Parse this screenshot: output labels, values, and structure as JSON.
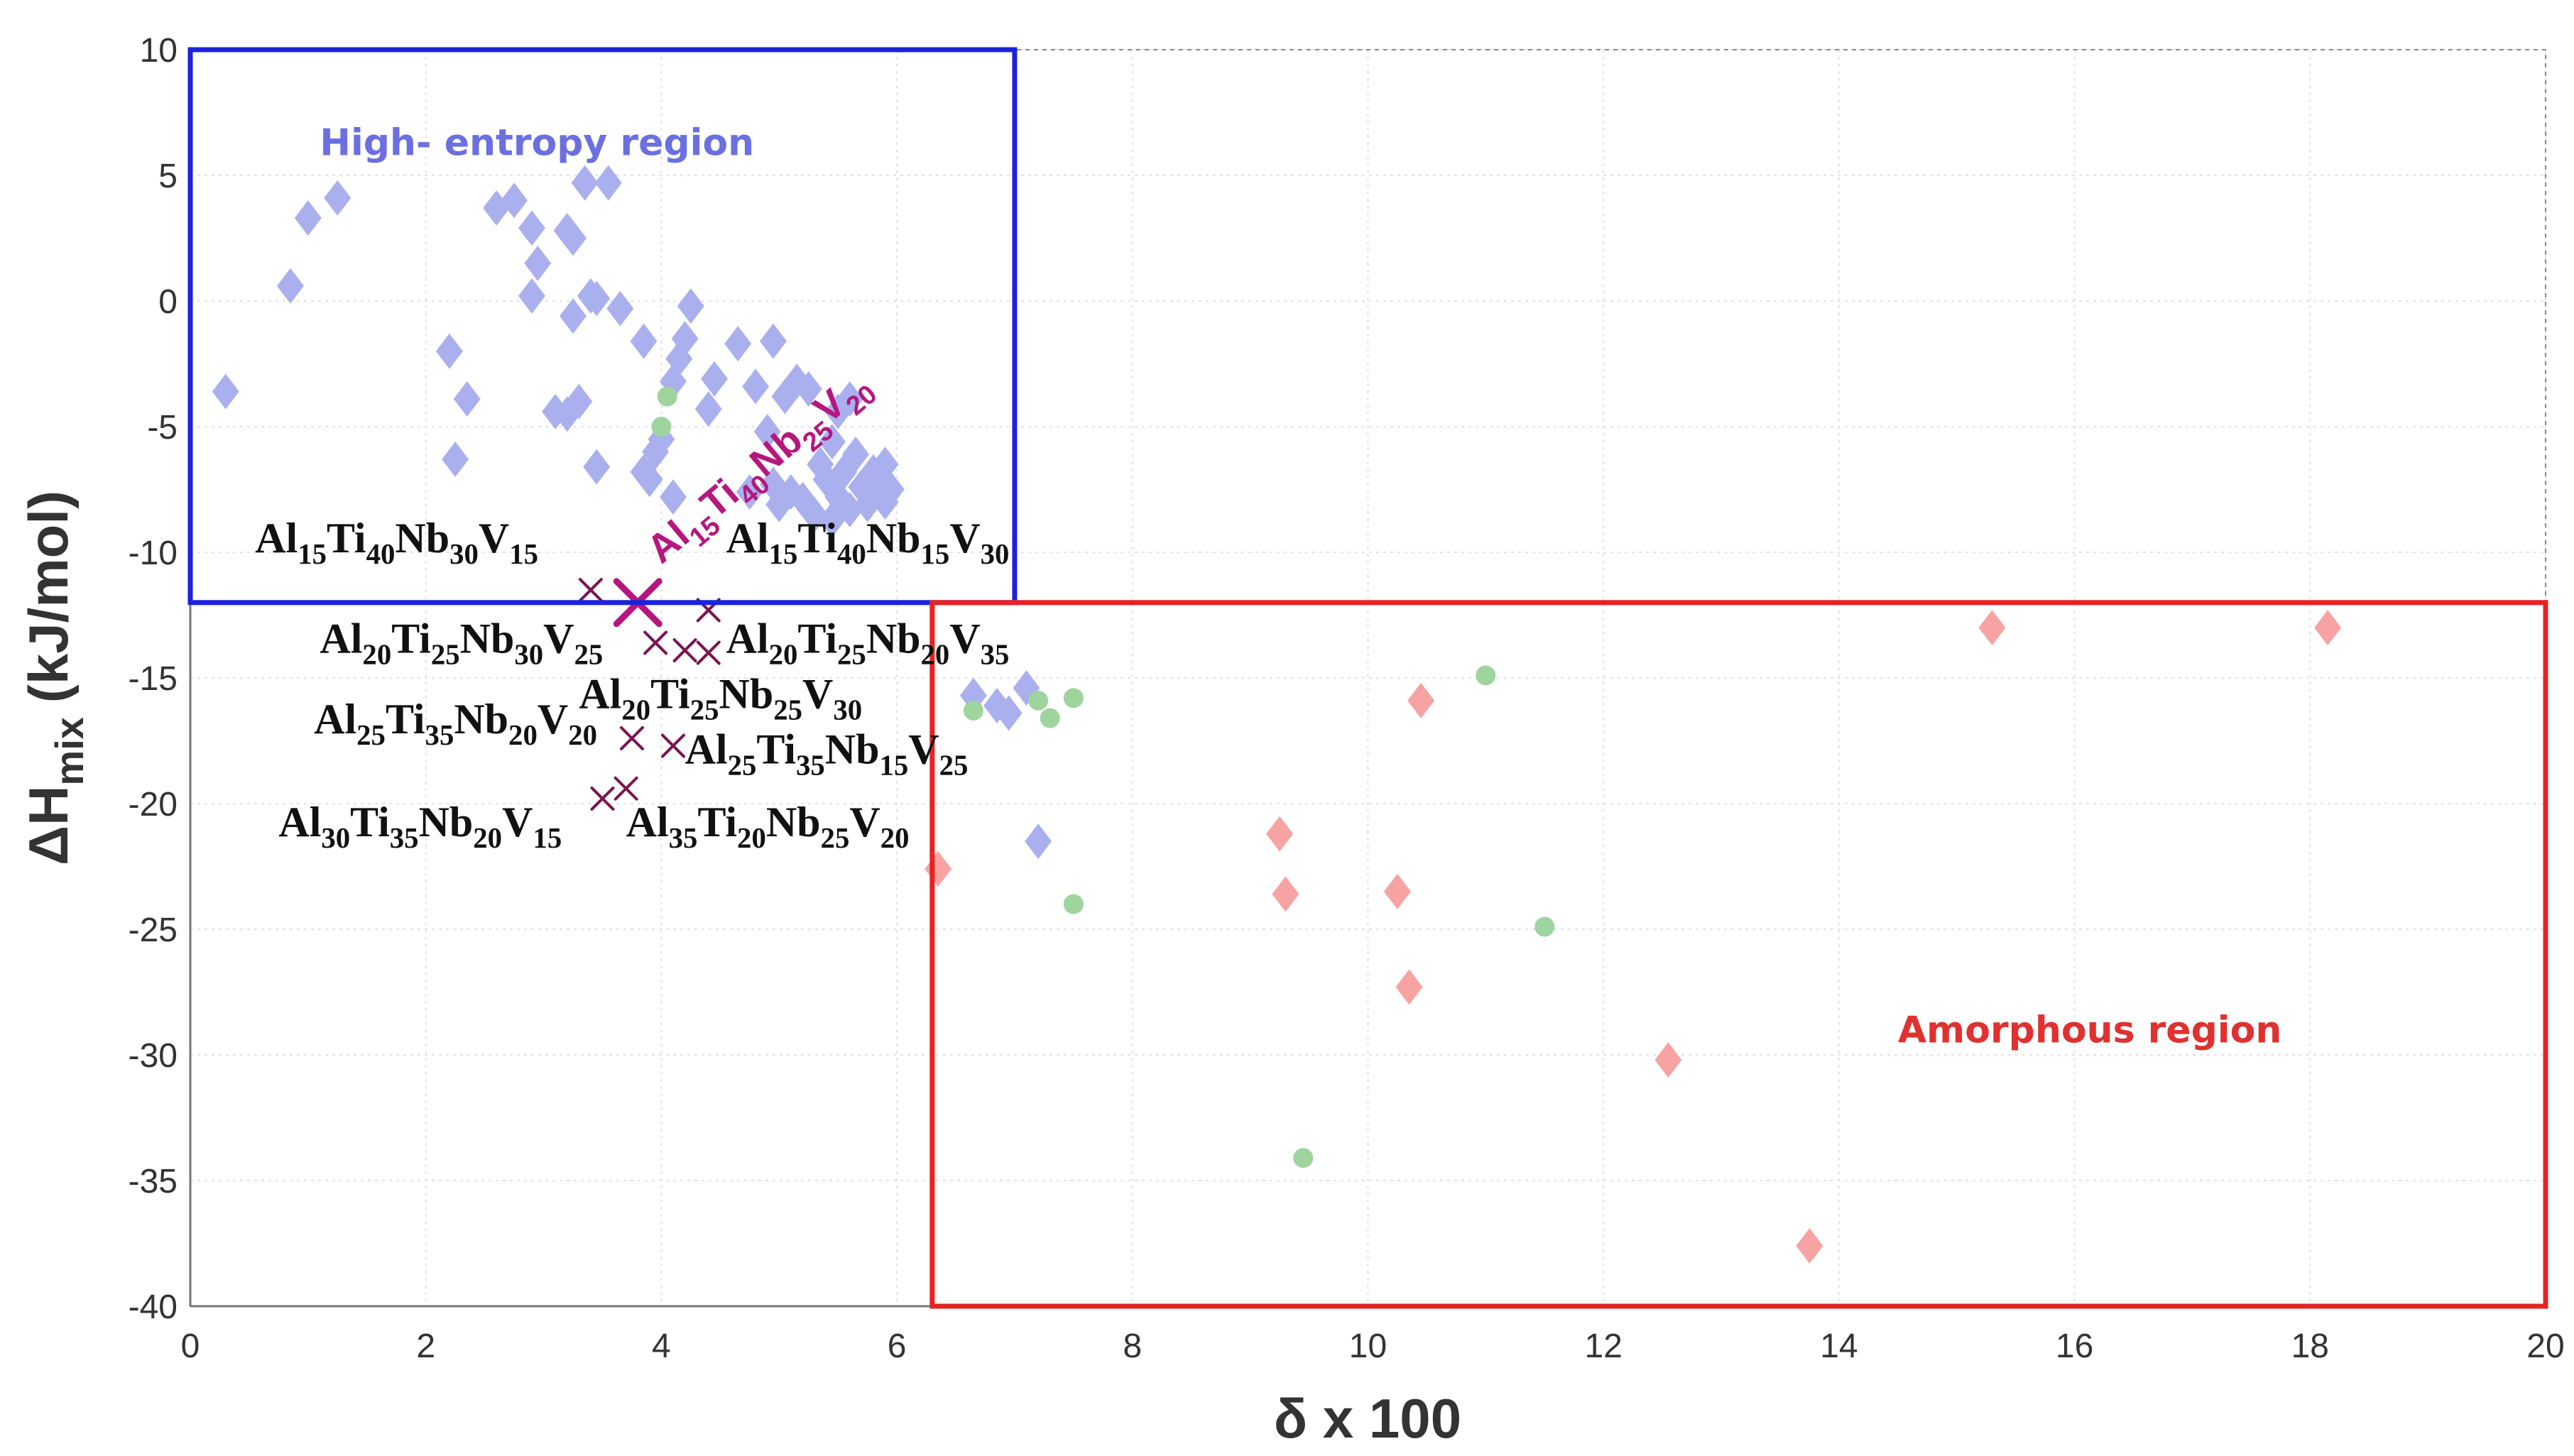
{
  "chart_data": {
    "type": "scatter",
    "title": "",
    "xlabel": "δ x 100",
    "ylabel_main": "ΔH",
    "ylabel_sub": "mix",
    "ylabel_unit": "(kJ/mol)",
    "xlim": [
      0,
      20
    ],
    "ylim": [
      -40,
      10
    ],
    "xticks": [
      0,
      2,
      4,
      6,
      8,
      10,
      12,
      14,
      16,
      18,
      20
    ],
    "yticks": [
      10,
      5,
      0,
      -5,
      -10,
      -15,
      -20,
      -25,
      -30,
      -35,
      -40
    ],
    "grid": true,
    "colors": {
      "blue": "#aab0ee",
      "green": "#9fd49f",
      "pink": "#f7a3a3",
      "cross": "#7a1450",
      "highlight": "#b5177e",
      "he_box": "#1b22dd",
      "am_box": "#e52323",
      "he_text": "#6b6fe0",
      "am_text": "#e03030"
    },
    "regions": [
      {
        "name": "High- entropy region",
        "x_range": [
          0,
          7
        ],
        "y_range": [
          -12,
          10
        ],
        "color": "#1b22dd"
      },
      {
        "name": "Amorphous region",
        "x_range": [
          6.3,
          20
        ],
        "y_range": [
          -40,
          -12
        ],
        "color": "#e52323"
      }
    ],
    "series": [
      {
        "name": "blue diamonds",
        "marker": "diamond",
        "color": "#aab0ee",
        "points": [
          [
            0.3,
            -3.6
          ],
          [
            0.85,
            0.6
          ],
          [
            1.0,
            3.3
          ],
          [
            1.25,
            4.1
          ],
          [
            2.2,
            -2.0
          ],
          [
            2.35,
            -3.9
          ],
          [
            2.25,
            -6.3
          ],
          [
            2.6,
            3.7
          ],
          [
            2.75,
            4.0
          ],
          [
            2.9,
            2.9
          ],
          [
            2.95,
            1.5
          ],
          [
            2.9,
            0.2
          ],
          [
            3.2,
            2.8
          ],
          [
            3.25,
            2.5
          ],
          [
            3.25,
            -0.6
          ],
          [
            3.4,
            0.2
          ],
          [
            3.45,
            0.1
          ],
          [
            3.65,
            -0.3
          ],
          [
            3.35,
            4.7
          ],
          [
            3.55,
            4.7
          ],
          [
            3.1,
            -4.4
          ],
          [
            3.2,
            -4.5
          ],
          [
            3.3,
            -4.0
          ],
          [
            3.45,
            -6.6
          ],
          [
            3.85,
            -1.6
          ],
          [
            3.85,
            -6.8
          ],
          [
            3.9,
            -7.1
          ],
          [
            3.95,
            -6.0
          ],
          [
            4.0,
            -5.5
          ],
          [
            4.1,
            -3.2
          ],
          [
            4.15,
            -2.3
          ],
          [
            4.2,
            -1.5
          ],
          [
            4.25,
            -0.2
          ],
          [
            4.1,
            -7.8
          ],
          [
            4.4,
            -4.3
          ],
          [
            4.45,
            -3.1
          ],
          [
            4.65,
            -1.7
          ],
          [
            4.95,
            -1.6
          ],
          [
            4.75,
            -7.6
          ],
          [
            4.8,
            -3.4
          ],
          [
            4.9,
            -5.2
          ],
          [
            4.95,
            -7.3
          ],
          [
            5.0,
            -8.1
          ],
          [
            5.05,
            -3.8
          ],
          [
            5.1,
            -7.6
          ],
          [
            5.15,
            -3.2
          ],
          [
            5.2,
            -7.9
          ],
          [
            5.25,
            -3.5
          ],
          [
            5.3,
            -8.5
          ],
          [
            5.35,
            -6.5
          ],
          [
            5.4,
            -7.1
          ],
          [
            5.45,
            -5.6
          ],
          [
            5.5,
            -7.8
          ],
          [
            5.55,
            -6.8
          ],
          [
            5.6,
            -8.3
          ],
          [
            5.65,
            -6.1
          ],
          [
            5.7,
            -7.4
          ],
          [
            5.75,
            -8.1
          ],
          [
            5.8,
            -6.8
          ],
          [
            5.85,
            -7.5
          ],
          [
            5.9,
            -8.0
          ],
          [
            5.9,
            -6.5
          ],
          [
            5.95,
            -7.5
          ],
          [
            5.5,
            -4.4
          ],
          [
            5.6,
            -3.9
          ],
          [
            5.45,
            -8.7
          ],
          [
            6.65,
            -15.7
          ],
          [
            6.85,
            -16.1
          ],
          [
            6.95,
            -16.4
          ],
          [
            7.1,
            -15.4
          ],
          [
            7.2,
            -21.5
          ]
        ]
      },
      {
        "name": "green circles",
        "marker": "circle",
        "color": "#9fd49f",
        "points": [
          [
            4.05,
            -3.8
          ],
          [
            4.0,
            -5.0
          ],
          [
            6.65,
            -16.3
          ],
          [
            7.2,
            -15.9
          ],
          [
            7.3,
            -16.6
          ],
          [
            7.5,
            -15.8
          ],
          [
            7.5,
            -24.0
          ],
          [
            9.45,
            -34.1
          ],
          [
            11.0,
            -14.9
          ],
          [
            11.5,
            -24.9
          ]
        ]
      },
      {
        "name": "pink diamonds",
        "marker": "diamond",
        "color": "#f7a3a3",
        "points": [
          [
            6.35,
            -22.6
          ],
          [
            9.25,
            -21.2
          ],
          [
            9.3,
            -23.6
          ],
          [
            10.25,
            -23.5
          ],
          [
            10.35,
            -27.3
          ],
          [
            10.45,
            -15.9
          ],
          [
            12.55,
            -30.2
          ],
          [
            13.75,
            -37.6
          ],
          [
            15.3,
            -13.0
          ],
          [
            18.15,
            -13.0
          ]
        ]
      },
      {
        "name": "alloy crosses",
        "marker": "cross",
        "color": "#7a1450",
        "points": [
          [
            3.4,
            -11.5
          ],
          [
            4.4,
            -12.3
          ],
          [
            3.95,
            -13.6
          ],
          [
            4.2,
            -13.9
          ],
          [
            4.4,
            -14.0
          ],
          [
            3.75,
            -17.4
          ],
          [
            4.1,
            -17.7
          ],
          [
            3.5,
            -19.8
          ],
          [
            3.7,
            -19.4
          ]
        ]
      },
      {
        "name": "highlighted alloy",
        "marker": "cross",
        "color": "#b5177e",
        "points": [
          [
            3.8,
            -12.0
          ]
        ]
      }
    ],
    "annotations": [
      {
        "parts": [
          [
            "Al",
            ""
          ],
          [
            "15",
            "s"
          ],
          [
            "Ti",
            ""
          ],
          [
            "40",
            "s"
          ],
          [
            "Nb",
            ""
          ],
          [
            "30",
            "s"
          ],
          [
            "V",
            ""
          ],
          [
            "15",
            "s"
          ]
        ],
        "x": 0.55,
        "y": -10.0,
        "anchor": "start",
        "style": "alloy"
      },
      {
        "parts": [
          [
            "Al",
            ""
          ],
          [
            "15",
            "s"
          ],
          [
            "Ti",
            ""
          ],
          [
            "40",
            "s"
          ],
          [
            "Nb",
            ""
          ],
          [
            "15",
            "s"
          ],
          [
            "V",
            ""
          ],
          [
            "30",
            "s"
          ]
        ],
        "x": 4.55,
        "y": -10.0,
        "anchor": "start",
        "style": "alloy"
      },
      {
        "parts": [
          [
            "Al",
            ""
          ],
          [
            "20",
            "s"
          ],
          [
            "Ti",
            ""
          ],
          [
            "25",
            "s"
          ],
          [
            "Nb",
            ""
          ],
          [
            "30",
            "s"
          ],
          [
            "V",
            ""
          ],
          [
            "25",
            "s"
          ]
        ],
        "x": 1.1,
        "y": -14.0,
        "anchor": "start",
        "style": "alloy"
      },
      {
        "parts": [
          [
            "Al",
            ""
          ],
          [
            "20",
            "s"
          ],
          [
            "Ti",
            ""
          ],
          [
            "25",
            "s"
          ],
          [
            "Nb",
            ""
          ],
          [
            "20",
            "s"
          ],
          [
            "V",
            ""
          ],
          [
            "35",
            "s"
          ]
        ],
        "x": 4.55,
        "y": -14.0,
        "anchor": "start",
        "style": "alloy"
      },
      {
        "parts": [
          [
            "Al",
            ""
          ],
          [
            "20",
            "s"
          ],
          [
            "Ti",
            ""
          ],
          [
            "25",
            "s"
          ],
          [
            "Nb",
            ""
          ],
          [
            "25",
            "s"
          ],
          [
            "V",
            ""
          ],
          [
            "30",
            "s"
          ]
        ],
        "x": 3.3,
        "y": -16.2,
        "anchor": "start",
        "style": "alloy"
      },
      {
        "parts": [
          [
            "Al",
            ""
          ],
          [
            "25",
            "s"
          ],
          [
            "Ti",
            ""
          ],
          [
            "35",
            "s"
          ],
          [
            "Nb",
            ""
          ],
          [
            "20",
            "s"
          ],
          [
            "V",
            ""
          ],
          [
            "20",
            "s"
          ]
        ],
        "x": 1.05,
        "y": -17.2,
        "anchor": "start",
        "style": "alloy"
      },
      {
        "parts": [
          [
            "Al",
            ""
          ],
          [
            "25",
            "s"
          ],
          [
            "Ti",
            ""
          ],
          [
            "35",
            "s"
          ],
          [
            "Nb",
            ""
          ],
          [
            "15",
            "s"
          ],
          [
            "V",
            ""
          ],
          [
            "25",
            "s"
          ]
        ],
        "x": 4.2,
        "y": -18.4,
        "anchor": "start",
        "style": "alloy"
      },
      {
        "parts": [
          [
            "Al",
            ""
          ],
          [
            "30",
            "s"
          ],
          [
            "Ti",
            ""
          ],
          [
            "35",
            "s"
          ],
          [
            "Nb",
            ""
          ],
          [
            "20",
            "s"
          ],
          [
            "V",
            ""
          ],
          [
            "15",
            "s"
          ]
        ],
        "x": 0.75,
        "y": -21.3,
        "anchor": "start",
        "style": "alloy"
      },
      {
        "parts": [
          [
            "Al",
            ""
          ],
          [
            "35",
            "s"
          ],
          [
            "Ti",
            ""
          ],
          [
            "20",
            "s"
          ],
          [
            "Nb",
            ""
          ],
          [
            "25",
            "s"
          ],
          [
            "V",
            ""
          ],
          [
            "20",
            "s"
          ]
        ],
        "x": 3.7,
        "y": -21.3,
        "anchor": "start",
        "style": "alloy"
      }
    ],
    "highlight_label": {
      "parts": [
        [
          "Al",
          ""
        ],
        [
          "15",
          "s"
        ],
        [
          "Ti",
          ""
        ],
        [
          "40",
          "s"
        ],
        [
          "Nb",
          ""
        ],
        [
          "25",
          "s"
        ],
        [
          "V",
          ""
        ],
        [
          "20",
          "s"
        ]
      ],
      "x": 4.0,
      "y": -10.5,
      "angle": -40
    },
    "region_labels": [
      {
        "text": "High- entropy region",
        "x": 1.1,
        "y": 5.8,
        "color": "#6b6fe0"
      },
      {
        "text": "Amorphous region",
        "x": 14.5,
        "y": -29.5,
        "color": "#e03030"
      }
    ]
  }
}
